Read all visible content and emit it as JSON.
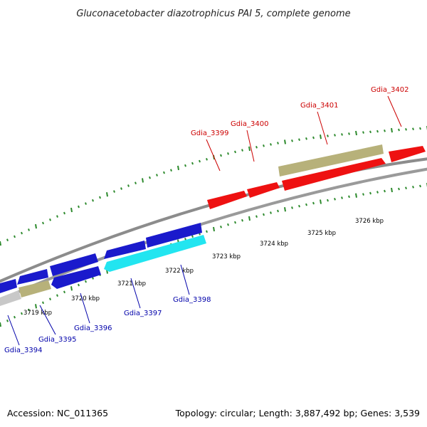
{
  "title": "Gluconacetobacter diazotrophicus PAI 5, complete genome",
  "footer": {
    "accession": "Accession: NC_011365",
    "summary": "Topology: circular; Length: 3,887,492 bp; Genes: 3,539"
  },
  "colors": {
    "backbone": "#8c8c8c",
    "tick": "#2d8a2d",
    "red": "#ee1111",
    "blue": "#1a1acc",
    "cyan": "#22e5f0",
    "olive": "#b7b17a",
    "gray": "#c8c8c8",
    "label_red": "#cc0000",
    "label_blue": "#0000aa"
  },
  "scale_labels": [
    "3719 kbp",
    "3720 kbp",
    "3721 kbp",
    "3722 kbp",
    "3723 kbp",
    "3724 kbp",
    "3725 kbp",
    "3726 kbp"
  ],
  "gene_labels": [
    {
      "text": "Gdia_3394",
      "color": "label_blue"
    },
    {
      "text": "Gdia_3395",
      "color": "label_blue"
    },
    {
      "text": "Gdia_3396",
      "color": "label_blue"
    },
    {
      "text": "Gdia_3397",
      "color": "label_blue"
    },
    {
      "text": "Gdia_3398",
      "color": "label_blue"
    },
    {
      "text": "Gdia_3399",
      "color": "label_red"
    },
    {
      "text": "Gdia_3400",
      "color": "label_red"
    },
    {
      "text": "Gdia_3401",
      "color": "label_red"
    },
    {
      "text": "Gdia_3402",
      "color": "label_red"
    }
  ]
}
